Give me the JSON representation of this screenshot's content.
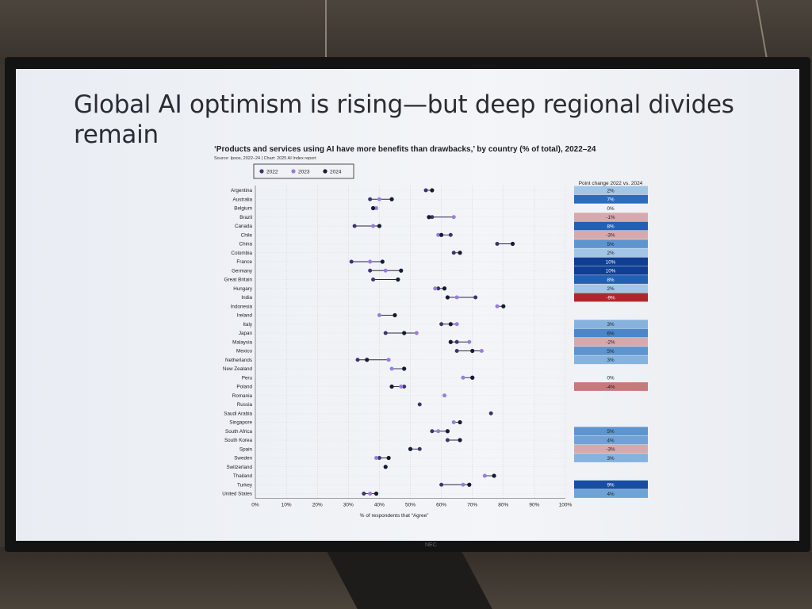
{
  "slide": {
    "title": "Global AI optimism is rising—but deep regional divides remain"
  },
  "chart_data": {
    "type": "scatter",
    "title": "‘Products and services using AI have more benefits than drawbacks,’ by country (% of total), 2022–24",
    "source": "Source: Ipsos, 2022–24 | Chart: 2025 AI Index report",
    "xlabel": "% of respondents that “Agree”",
    "xlim": [
      0,
      100
    ],
    "x_ticks": [
      "0%",
      "10%",
      "20%",
      "30%",
      "40%",
      "50%",
      "60%",
      "70%",
      "80%",
      "90%",
      "100%"
    ],
    "legend": [
      "2022",
      "2023",
      "2024"
    ],
    "legend_position": "top-left",
    "colors": {
      "y2022": "#3b3470",
      "y2023": "#9a7ce0",
      "y2024": "#151b33",
      "line": "#2b2640"
    },
    "change_header": "Point change 2022 vs. 2024",
    "countries": [
      {
        "name": "Argentina",
        "y2022": 55,
        "y2023": null,
        "y2024": 57,
        "change": "2%"
      },
      {
        "name": "Australia",
        "y2022": 37,
        "y2023": 40,
        "y2024": 44,
        "change": "7%"
      },
      {
        "name": "Belgium",
        "y2022": 38,
        "y2023": 39,
        "y2024": 38,
        "change": "0%"
      },
      {
        "name": "Brazil",
        "y2022": 57,
        "y2023": 64,
        "y2024": 56,
        "change": "-1%"
      },
      {
        "name": "Canada",
        "y2022": 32,
        "y2023": 38,
        "y2024": 40,
        "change": "8%"
      },
      {
        "name": "Chile",
        "y2022": 63,
        "y2023": 59,
        "y2024": 60,
        "change": "-3%"
      },
      {
        "name": "China",
        "y2022": 78,
        "y2023": null,
        "y2024": 83,
        "change": "5%"
      },
      {
        "name": "Colombia",
        "y2022": 64,
        "y2023": null,
        "y2024": 66,
        "change": "2%"
      },
      {
        "name": "France",
        "y2022": 31,
        "y2023": 37,
        "y2024": 41,
        "change": "10%"
      },
      {
        "name": "Germany",
        "y2022": 37,
        "y2023": 42,
        "y2024": 47,
        "change": "10%"
      },
      {
        "name": "Great Britain",
        "y2022": 38,
        "y2023": null,
        "y2024": 46,
        "change": "8%"
      },
      {
        "name": "Hungary",
        "y2022": 59,
        "y2023": 58,
        "y2024": 61,
        "change": "2%"
      },
      {
        "name": "India",
        "y2022": 71,
        "y2023": 65,
        "y2024": 62,
        "change": "-9%"
      },
      {
        "name": "Indonesia",
        "y2022": null,
        "y2023": 78,
        "y2024": 80,
        "change": ""
      },
      {
        "name": "Ireland",
        "y2022": null,
        "y2023": 40,
        "y2024": 45,
        "change": ""
      },
      {
        "name": "Italy",
        "y2022": 60,
        "y2023": 65,
        "y2024": 63,
        "change": "3%"
      },
      {
        "name": "Japan",
        "y2022": 42,
        "y2023": 52,
        "y2024": 48,
        "change": "6%"
      },
      {
        "name": "Malaysia",
        "y2022": 65,
        "y2023": 69,
        "y2024": 63,
        "change": "-2%"
      },
      {
        "name": "Mexico",
        "y2022": 65,
        "y2023": 73,
        "y2024": 70,
        "change": "5%"
      },
      {
        "name": "Netherlands",
        "y2022": 33,
        "y2023": 43,
        "y2024": 36,
        "change": "3%"
      },
      {
        "name": "New Zealand",
        "y2022": null,
        "y2023": 44,
        "y2024": 48,
        "change": ""
      },
      {
        "name": "Peru",
        "y2022": 70,
        "y2023": 67,
        "y2024": 70,
        "change": "0%"
      },
      {
        "name": "Poland",
        "y2022": 48,
        "y2023": 47,
        "y2024": 44,
        "change": "-4%"
      },
      {
        "name": "Romania",
        "y2022": null,
        "y2023": 61,
        "y2024": null,
        "change": ""
      },
      {
        "name": "Russia",
        "y2022": 53,
        "y2023": null,
        "y2024": null,
        "change": ""
      },
      {
        "name": "Saudi Arabia",
        "y2022": 76,
        "y2023": null,
        "y2024": null,
        "change": ""
      },
      {
        "name": "Singapore",
        "y2022": null,
        "y2023": 64,
        "y2024": 66,
        "change": ""
      },
      {
        "name": "South Africa",
        "y2022": 57,
        "y2023": 59,
        "y2024": 62,
        "change": "5%"
      },
      {
        "name": "South Korea",
        "y2022": 62,
        "y2023": null,
        "y2024": 66,
        "change": "4%"
      },
      {
        "name": "Spain",
        "y2022": 53,
        "y2023": null,
        "y2024": 50,
        "change": "-3%"
      },
      {
        "name": "Sweden",
        "y2022": 40,
        "y2023": 39,
        "y2024": 43,
        "change": "3%"
      },
      {
        "name": "Switzerland",
        "y2022": null,
        "y2023": null,
        "y2024": 42,
        "change": ""
      },
      {
        "name": "Thailand",
        "y2022": null,
        "y2023": 74,
        "y2024": 77,
        "change": ""
      },
      {
        "name": "Turkey",
        "y2022": 60,
        "y2023": 67,
        "y2024": 69,
        "change": "9%"
      },
      {
        "name": "United States",
        "y2022": 35,
        "y2023": 37,
        "y2024": 39,
        "change": "4%"
      }
    ]
  }
}
